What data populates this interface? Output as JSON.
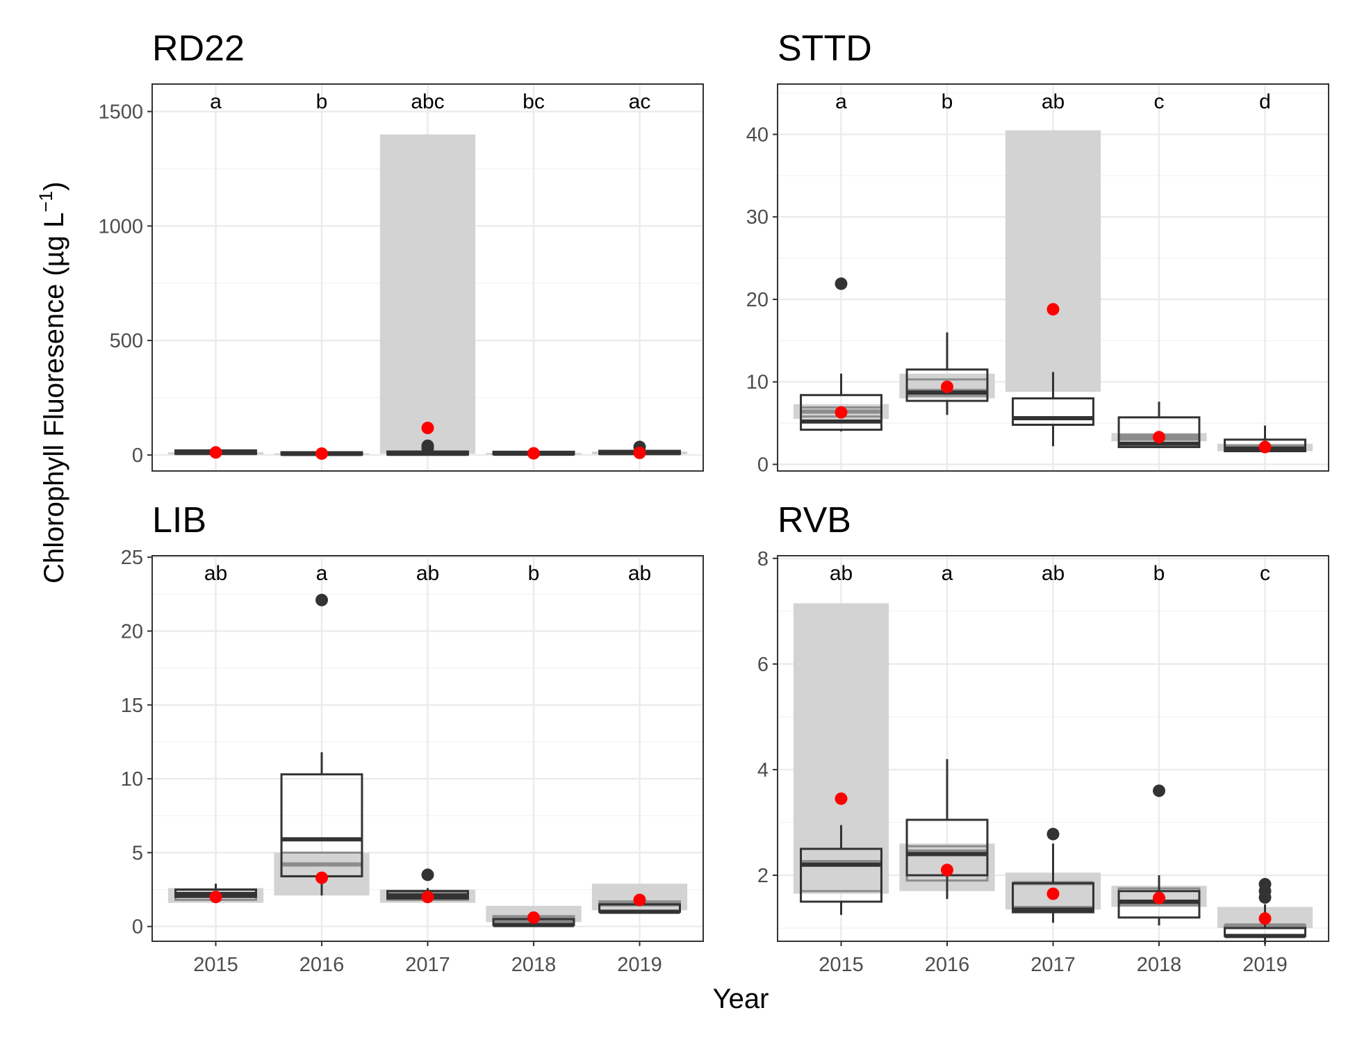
{
  "figure": {
    "xlabel": "Year",
    "ylabel": "Chlorophyll Fluoresence (µg L",
    "ylabel_sup": "−1",
    "ylabel_end": ")"
  },
  "colors": {
    "range_band": "#d3d3d3",
    "range_box_line": "#8c8c8c",
    "box_line": "#333333",
    "outlier": "#333333",
    "mean_point": "#ff0000",
    "grid": "#ebebeb"
  },
  "chart_data": [
    {
      "type": "box",
      "title": "RD22",
      "categories": [
        "2015",
        "2016",
        "2017",
        "2018",
        "2019"
      ],
      "ylim": [
        -70,
        1620
      ],
      "yticks": [
        0,
        500,
        1000,
        1500
      ],
      "tick_labels": [
        "0",
        "500",
        "1000",
        "1500"
      ],
      "letters": [
        "a",
        "b",
        "abc",
        "bc",
        "ac"
      ],
      "range_band": [
        [
          2,
          12
        ],
        [
          1,
          7
        ],
        [
          5,
          1400
        ],
        [
          2,
          9
        ],
        [
          3,
          15
        ]
      ],
      "range_box": [
        [
          4,
          8,
          10
        ],
        [
          2,
          4,
          5
        ],
        [
          3,
          6,
          12
        ],
        [
          3,
          5,
          7
        ],
        [
          4,
          7,
          11
        ]
      ],
      "box": [
        {
          "q1": 5,
          "median": 10,
          "q3": 20,
          "min": 3,
          "max": 25
        },
        {
          "q1": 2,
          "median": 5,
          "q3": 12,
          "min": 1,
          "max": 15
        },
        {
          "q1": 2,
          "median": 5,
          "q3": 15,
          "min": 1,
          "max": 20
        },
        {
          "q1": 3,
          "median": 6,
          "q3": 14,
          "min": 2,
          "max": 17
        },
        {
          "q1": 5,
          "median": 10,
          "q3": 18,
          "min": 3,
          "max": 22
        }
      ],
      "outliers": [
        [],
        [],
        [
          30,
          40
        ],
        [],
        [
          35
        ]
      ],
      "means": [
        11,
        6,
        118,
        7,
        9
      ]
    },
    {
      "type": "box",
      "title": "STTD",
      "categories": [
        "2015",
        "2016",
        "2017",
        "2018",
        "2019"
      ],
      "ylim": [
        -0.8,
        46.1
      ],
      "yticks": [
        0,
        10,
        20,
        30,
        40
      ],
      "tick_labels": [
        "0",
        "10",
        "20",
        "30",
        "40"
      ],
      "letters": [
        "a",
        "b",
        "ab",
        "c",
        "d"
      ],
      "range_band": [
        [
          5.5,
          7.3
        ],
        [
          8.0,
          11.0
        ],
        [
          8.8,
          40.5
        ],
        [
          2.8,
          3.8
        ],
        [
          1.6,
          2.5
        ]
      ],
      "range_box": [
        [
          5.8,
          6.4,
          6.9
        ],
        [
          8.3,
          8.9,
          10.3
        ],
        [],
        [
          3.0,
          3.3,
          3.6
        ],
        [
          1.8,
          2.0,
          2.3
        ]
      ],
      "box": [
        {
          "q1": 4.2,
          "median": 5.2,
          "q3": 8.4,
          "min": 4.0,
          "max": 11.0
        },
        {
          "q1": 7.7,
          "median": 8.7,
          "q3": 11.5,
          "min": 6.0,
          "max": 16.0
        },
        {
          "q1": 4.8,
          "median": 5.6,
          "q3": 8.0,
          "min": 2.2,
          "max": 11.2
        },
        {
          "q1": 2.1,
          "median": 2.5,
          "q3": 5.7,
          "min": 2.0,
          "max": 7.6
        },
        {
          "q1": 1.6,
          "median": 1.9,
          "q3": 3.0,
          "min": 1.5,
          "max": 4.7
        }
      ],
      "outliers": [
        [
          21.9
        ],
        [],
        [],
        [],
        []
      ],
      "means": [
        6.3,
        9.4,
        18.8,
        3.3,
        2.1
      ]
    },
    {
      "type": "box",
      "title": "LIB",
      "categories": [
        "2015",
        "2016",
        "2017",
        "2018",
        "2019"
      ],
      "ylim": [
        -1.0,
        25.1
      ],
      "yticks": [
        0,
        5,
        10,
        15,
        20,
        25
      ],
      "tick_labels": [
        "0",
        "5",
        "10",
        "15",
        "20",
        "25"
      ],
      "letters": [
        "ab",
        "a",
        "ab",
        "b",
        "ab"
      ],
      "range_band": [
        [
          1.6,
          2.6
        ],
        [
          2.1,
          5.0
        ],
        [
          1.6,
          2.5
        ],
        [
          0.3,
          1.4
        ],
        [
          1.1,
          2.9
        ]
      ],
      "range_box": [
        [
          1.8,
          2.2,
          2.5
        ],
        [
          3.4,
          4.2,
          5.0
        ],
        [
          1.8,
          2.2,
          2.4
        ],
        [
          0.3,
          0.5,
          0.7
        ],
        [
          1.0,
          1.5,
          1.7
        ]
      ],
      "box": [
        {
          "q1": 2.0,
          "median": 2.2,
          "q3": 2.5,
          "min": 1.6,
          "max": 2.9
        },
        {
          "q1": 3.4,
          "median": 5.9,
          "q3": 10.3,
          "min": 2.1,
          "max": 11.8
        },
        {
          "q1": 1.9,
          "median": 2.1,
          "q3": 2.4,
          "min": 1.6,
          "max": 2.6
        },
        {
          "q1": 0.1,
          "median": 0.1,
          "q3": 0.5,
          "min": 0.0,
          "max": 0.6
        },
        {
          "q1": 1.0,
          "median": 1.0,
          "q3": 1.5,
          "min": 0.9,
          "max": 1.7
        }
      ],
      "outliers": [
        [],
        [
          22.1
        ],
        [
          3.5
        ],
        [],
        []
      ],
      "means": [
        2.0,
        3.3,
        2.0,
        0.6,
        1.8
      ]
    },
    {
      "type": "box",
      "title": "RVB",
      "categories": [
        "2015",
        "2016",
        "2017",
        "2018",
        "2019"
      ],
      "ylim": [
        0.75,
        8.05
      ],
      "yticks": [
        2,
        4,
        6,
        8
      ],
      "tick_labels": [
        "2",
        "4",
        "6",
        "8"
      ],
      "letters": [
        "ab",
        "a",
        "ab",
        "b",
        "c"
      ],
      "range_band": [
        [
          1.65,
          7.15
        ],
        [
          1.7,
          2.6
        ],
        [
          1.35,
          2.05
        ],
        [
          1.4,
          1.8
        ],
        [
          1.0,
          1.4
        ]
      ],
      "range_box": [
        [
          1.7,
          2.25,
          2.5
        ],
        [
          1.9,
          2.45,
          2.55
        ],
        [
          1.4,
          1.85,
          1.85
        ],
        [
          1.45,
          1.45,
          1.75
        ],
        [
          1.0,
          1.05,
          1.05
        ]
      ],
      "box": [
        {
          "q1": 1.5,
          "median": 2.2,
          "q3": 2.5,
          "min": 1.25,
          "max": 2.95
        },
        {
          "q1": 2.0,
          "median": 2.4,
          "q3": 3.05,
          "min": 1.55,
          "max": 4.2
        },
        {
          "q1": 1.3,
          "median": 1.35,
          "q3": 1.85,
          "min": 1.1,
          "max": 2.6
        },
        {
          "q1": 1.2,
          "median": 1.5,
          "q3": 1.7,
          "min": 1.05,
          "max": 2.0
        },
        {
          "q1": 0.85,
          "median": 0.85,
          "q3": 1.0,
          "min": 0.7,
          "max": 1.45
        }
      ],
      "outliers": [
        [],
        [],
        [
          2.78
        ],
        [
          3.6
        ],
        [
          1.58,
          1.7,
          1.83
        ]
      ],
      "means": [
        3.45,
        2.1,
        1.65,
        1.57,
        1.18
      ]
    }
  ]
}
